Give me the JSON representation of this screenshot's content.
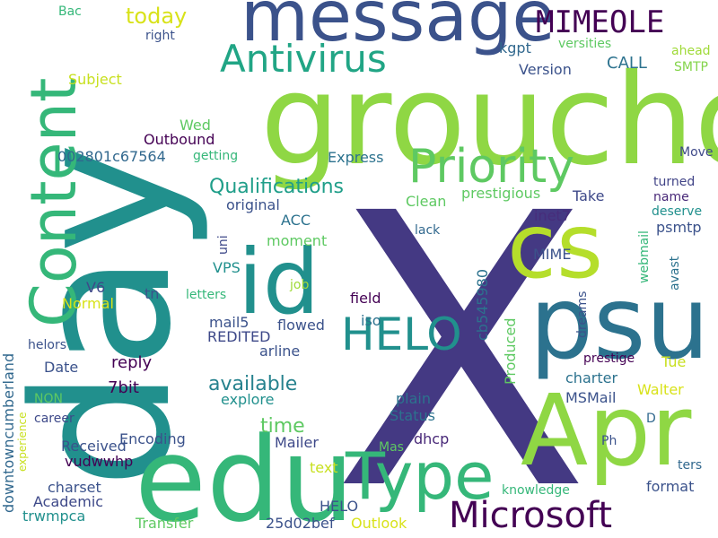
{
  "words": [
    {
      "id": "w-x",
      "text": "X",
      "color": "#443983"
    },
    {
      "id": "w-day",
      "text": "day",
      "color": "#21908d"
    },
    {
      "id": "w-groucho",
      "text": "groucho",
      "color": "#8fd744"
    },
    {
      "id": "w-message",
      "text": "message",
      "color": "#3b528b"
    },
    {
      "id": "w-edu",
      "text": "edu",
      "color": "#35b779"
    },
    {
      "id": "w-apr",
      "text": "Apr",
      "color": "#8fd744"
    },
    {
      "id": "w-psu",
      "text": "psu",
      "color": "#2c728e"
    },
    {
      "id": "w-cs",
      "text": "cs",
      "color": "#b5de2b"
    },
    {
      "id": "w-id",
      "text": "id",
      "color": "#21908d"
    },
    {
      "id": "w-content",
      "text": "Content",
      "color": "#35b779"
    },
    {
      "id": "w-type",
      "text": "Type",
      "color": "#35b779"
    },
    {
      "id": "w-priority",
      "text": "Priority",
      "color": "#5ec962"
    },
    {
      "id": "w-antivirus",
      "text": "Antivirus",
      "color": "#21a585"
    },
    {
      "id": "w-microsoft",
      "text": "Microsoft",
      "color": "#440154"
    },
    {
      "id": "w-mimeole",
      "text": "MIMEOLE",
      "color": "#440154"
    },
    {
      "id": "w-today",
      "text": "today",
      "color": "#d8e219"
    },
    {
      "id": "w-qualifications",
      "text": "Qualifications",
      "color": "#1f9e89"
    },
    {
      "id": "w-available",
      "text": "available",
      "color": "#26828e"
    },
    {
      "id": "w-time",
      "text": "time",
      "color": "#5ec962"
    },
    {
      "id": "w-helo-big",
      "text": "HELO",
      "color": "#21908d"
    },
    {
      "id": "w-call",
      "text": "CALL",
      "color": "#2c728e"
    },
    {
      "id": "w-version",
      "text": "Version",
      "color": "#3b528b"
    },
    {
      "id": "w-kgpt",
      "text": "kgpt",
      "color": "#31688e"
    },
    {
      "id": "w-versities",
      "text": "versities",
      "color": "#5ec962"
    },
    {
      "id": "w-smtp",
      "text": "SMTP",
      "color": "#84d44b"
    },
    {
      "id": "w-ahead",
      "text": "ahead",
      "color": "#a0da39"
    },
    {
      "id": "w-bac",
      "text": "Bac",
      "color": "#35b779"
    },
    {
      "id": "w-right",
      "text": "right",
      "color": "#3b528b"
    },
    {
      "id": "w-subject",
      "text": "Subject",
      "color": "#c8e020"
    },
    {
      "id": "w-wed",
      "text": "Wed",
      "color": "#5ec962"
    },
    {
      "id": "w-outbound",
      "text": "Outbound",
      "color": "#440154"
    },
    {
      "id": "w-002801",
      "text": "002801c67564",
      "color": "#31688e"
    },
    {
      "id": "w-getting",
      "text": "getting",
      "color": "#35b779"
    },
    {
      "id": "w-express",
      "text": "Express",
      "color": "#2c728e"
    },
    {
      "id": "w-move",
      "text": "Move",
      "color": "#3e4989"
    },
    {
      "id": "w-turned",
      "text": "turned",
      "color": "#414487"
    },
    {
      "id": "w-name",
      "text": "name",
      "color": "#482878"
    },
    {
      "id": "w-deserve",
      "text": "deserve",
      "color": "#21908d"
    },
    {
      "id": "w-clean",
      "text": "Clean",
      "color": "#5ec962"
    },
    {
      "id": "w-prestigious",
      "text": "prestigious",
      "color": "#5ec962"
    },
    {
      "id": "w-take",
      "text": "Take",
      "color": "#3e4989"
    },
    {
      "id": "w-original",
      "text": "original",
      "color": "#3b528b"
    },
    {
      "id": "w-acc",
      "text": "ACC",
      "color": "#2c728e"
    },
    {
      "id": "w-lack",
      "text": "lack",
      "color": "#31688e"
    },
    {
      "id": "w-inet7",
      "text": "inet7",
      "color": "#472d7b"
    },
    {
      "id": "w-psmtp",
      "text": "psmtp",
      "color": "#3b528b"
    },
    {
      "id": "w-moment",
      "text": "moment",
      "color": "#5ec962"
    },
    {
      "id": "w-uni",
      "text": "uni",
      "color": "#3e4989"
    },
    {
      "id": "w-vps",
      "text": "VPS",
      "color": "#21908d"
    },
    {
      "id": "w-job",
      "text": "job",
      "color": "#a0da39"
    },
    {
      "id": "w-letters",
      "text": "letters",
      "color": "#35b779"
    },
    {
      "id": "w-tn",
      "text": "tn",
      "color": "#3b528b"
    },
    {
      "id": "w-v6",
      "text": "V6",
      "color": "#3e4989"
    },
    {
      "id": "w-normal",
      "text": "Normal",
      "color": "#d8e219"
    },
    {
      "id": "w-mime",
      "text": "MIME",
      "color": "#3b528b"
    },
    {
      "id": "w-webmail",
      "text": "webmail",
      "color": "#35b779"
    },
    {
      "id": "w-avast",
      "text": "avast",
      "color": "#2c728e"
    },
    {
      "id": "w-field",
      "text": "field",
      "color": "#440154"
    },
    {
      "id": "w-mail5",
      "text": "mail5",
      "color": "#3b528b"
    },
    {
      "id": "w-flowed",
      "text": "flowed",
      "color": "#3b528b"
    },
    {
      "id": "w-iso",
      "text": "iso",
      "color": "#2c728e"
    },
    {
      "id": "w-cb545980",
      "text": "cb545980",
      "color": "#2c728e"
    },
    {
      "id": "w-produced",
      "text": "Produced",
      "color": "#5ec962"
    },
    {
      "id": "w-dreams",
      "text": "dreams",
      "color": "#3b528b"
    },
    {
      "id": "w-prestige",
      "text": "prestige",
      "color": "#440154"
    },
    {
      "id": "w-tue",
      "text": "Tue",
      "color": "#c8e020"
    },
    {
      "id": "w-charter",
      "text": "charter",
      "color": "#2c728e"
    },
    {
      "id": "w-msmail",
      "text": "MSMail",
      "color": "#3b528b"
    },
    {
      "id": "w-walter",
      "text": "Walter",
      "color": "#d8e219"
    },
    {
      "id": "w-redited",
      "text": "REDITED",
      "color": "#3e4989"
    },
    {
      "id": "w-arline",
      "text": "arline",
      "color": "#3b528b"
    },
    {
      "id": "w-reply",
      "text": "reply",
      "color": "#440154"
    },
    {
      "id": "w-date",
      "text": "Date",
      "color": "#3b528b"
    },
    {
      "id": "w-7bit",
      "text": "7bit",
      "color": "#440154"
    },
    {
      "id": "w-explore",
      "text": "explore",
      "color": "#21908d"
    },
    {
      "id": "w-non",
      "text": "NON",
      "color": "#5ec962"
    },
    {
      "id": "w-helors",
      "text": "helors",
      "color": "#3b528b"
    },
    {
      "id": "w-downtown",
      "text": "downtowncumberland",
      "color": "#31688e"
    },
    {
      "id": "w-career",
      "text": "career",
      "color": "#3e4989"
    },
    {
      "id": "w-experience",
      "text": "experience",
      "color": "#c8e020"
    },
    {
      "id": "w-plain",
      "text": "plain",
      "color": "#2c728e"
    },
    {
      "id": "w-status",
      "text": "Status",
      "color": "#2c728e"
    },
    {
      "id": "w-d",
      "text": "D",
      "color": "#31688e"
    },
    {
      "id": "w-received",
      "text": "Received",
      "color": "#3b528b"
    },
    {
      "id": "w-encoding",
      "text": "Encoding",
      "color": "#3b528b"
    },
    {
      "id": "w-mailer",
      "text": "Mailer",
      "color": "#3e4989"
    },
    {
      "id": "w-dhcp",
      "text": "dhcp",
      "color": "#482878"
    },
    {
      "id": "w-mas",
      "text": "Mas",
      "color": "#5ec962"
    },
    {
      "id": "w-ph",
      "text": "Ph",
      "color": "#3b528b"
    },
    {
      "id": "w-vudwwhp",
      "text": "vudwwhp",
      "color": "#440154"
    },
    {
      "id": "w-text",
      "text": "text",
      "color": "#c8e020"
    },
    {
      "id": "w-ters",
      "text": "ters",
      "color": "#31688e"
    },
    {
      "id": "w-charset",
      "text": "charset",
      "color": "#3b528b"
    },
    {
      "id": "w-academic",
      "text": "Academic",
      "color": "#3e4989"
    },
    {
      "id": "w-trwmpca",
      "text": "trwmpca",
      "color": "#21908d"
    },
    {
      "id": "w-helo-small",
      "text": "HELO",
      "color": "#3b528b"
    },
    {
      "id": "w-knowledge",
      "text": "knowledge",
      "color": "#35b779"
    },
    {
      "id": "w-format",
      "text": "format",
      "color": "#3b528b"
    },
    {
      "id": "w-transfer",
      "text": "Transfer",
      "color": "#5ec962"
    },
    {
      "id": "w-25d02bef",
      "text": "25d02bef",
      "color": "#3b528b"
    },
    {
      "id": "w-outlook",
      "text": "Outlook",
      "color": "#d8e219"
    }
  ]
}
